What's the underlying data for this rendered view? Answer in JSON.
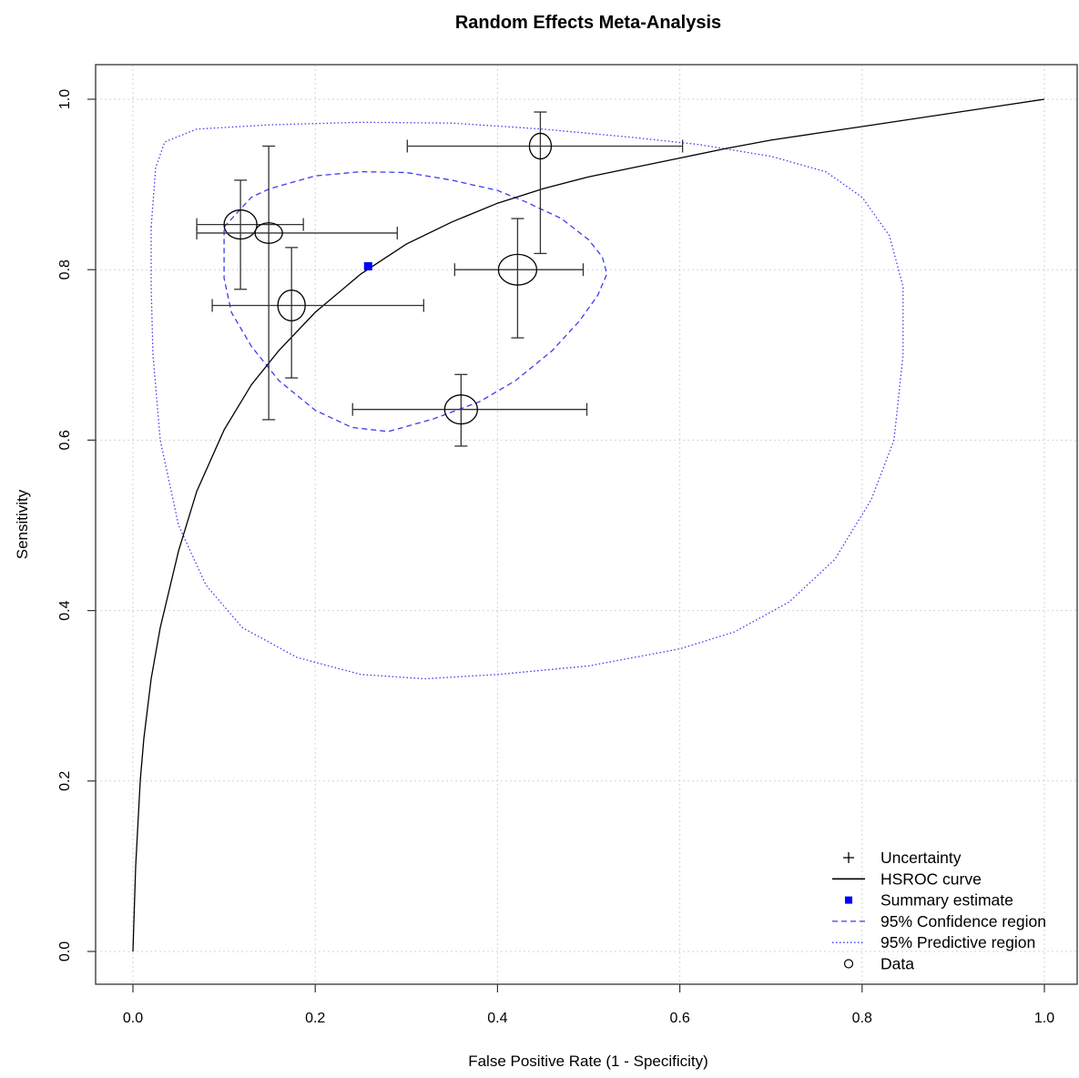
{
  "chart_data": {
    "type": "scatter",
    "title": "Random Effects Meta-Analysis",
    "xlabel": "False Positive Rate (1 - Specificity)",
    "ylabel": "Sensitivity",
    "xlim": [
      0,
      1
    ],
    "ylim": [
      0,
      1
    ],
    "xticks": [
      "0.0",
      "0.2",
      "0.4",
      "0.6",
      "0.8",
      "1.0"
    ],
    "yticks": [
      "0.0",
      "0.2",
      "0.4",
      "0.6",
      "0.8",
      "1.0"
    ],
    "grid": true,
    "legend_position": "bottom-right",
    "legend": [
      {
        "label": "Uncertainty",
        "symbol": "plus"
      },
      {
        "label": "HSROC curve",
        "symbol": "solid-line"
      },
      {
        "label": "Summary estimate",
        "symbol": "blue-square"
      },
      {
        "label": "95% Confidence region",
        "symbol": "dashed-line"
      },
      {
        "label": "95% Predictive region",
        "symbol": "dotted-line"
      },
      {
        "label": "Data",
        "symbol": "circle"
      }
    ],
    "colors": {
      "region": "#3c3cf0",
      "summary": "#0000ff",
      "data": "#000000",
      "curve": "#000000",
      "grid": "#d3d3d3"
    },
    "studies": [
      {
        "fpr": 0.118,
        "sens": 0.853,
        "fpr_ci": [
          0.07,
          0.187
        ],
        "sens_ci": [
          0.777,
          0.905
        ],
        "rx": 0.018,
        "ry": 0.017
      },
      {
        "fpr": 0.149,
        "sens": 0.843,
        "fpr_ci": [
          0.07,
          0.29
        ],
        "sens_ci": [
          0.624,
          0.945
        ],
        "rx": 0.015,
        "ry": 0.012
      },
      {
        "fpr": 0.174,
        "sens": 0.758,
        "fpr_ci": [
          0.087,
          0.319
        ],
        "sens_ci": [
          0.673,
          0.826
        ],
        "rx": 0.015,
        "ry": 0.018
      },
      {
        "fpr": 0.36,
        "sens": 0.636,
        "fpr_ci": [
          0.241,
          0.498
        ],
        "sens_ci": [
          0.593,
          0.677
        ],
        "rx": 0.018,
        "ry": 0.017
      },
      {
        "fpr": 0.422,
        "sens": 0.8,
        "fpr_ci": [
          0.353,
          0.494
        ],
        "sens_ci": [
          0.72,
          0.86
        ],
        "rx": 0.021,
        "ry": 0.018
      },
      {
        "fpr": 0.447,
        "sens": 0.945,
        "fpr_ci": [
          0.301,
          0.603
        ],
        "sens_ci": [
          0.819,
          0.985
        ],
        "rx": 0.012,
        "ry": 0.015
      }
    ],
    "summary_estimate": {
      "fpr": 0.258,
      "sens": 0.804
    },
    "hsroc_curve": [
      [
        0.0,
        0.0
      ],
      [
        0.003,
        0.1
      ],
      [
        0.008,
        0.2
      ],
      [
        0.012,
        0.25
      ],
      [
        0.02,
        0.32
      ],
      [
        0.03,
        0.38
      ],
      [
        0.05,
        0.47
      ],
      [
        0.07,
        0.54
      ],
      [
        0.1,
        0.612
      ],
      [
        0.13,
        0.665
      ],
      [
        0.16,
        0.705
      ],
      [
        0.2,
        0.75
      ],
      [
        0.25,
        0.795
      ],
      [
        0.3,
        0.83
      ],
      [
        0.35,
        0.856
      ],
      [
        0.4,
        0.878
      ],
      [
        0.45,
        0.895
      ],
      [
        0.5,
        0.909
      ],
      [
        0.55,
        0.92
      ],
      [
        0.6,
        0.931
      ],
      [
        0.65,
        0.942
      ],
      [
        0.7,
        0.952
      ],
      [
        0.75,
        0.96
      ],
      [
        0.8,
        0.968
      ],
      [
        0.85,
        0.976
      ],
      [
        0.9,
        0.984
      ],
      [
        0.95,
        0.992
      ],
      [
        1.0,
        1.0
      ]
    ],
    "confidence_region": [
      [
        0.1,
        0.85
      ],
      [
        0.13,
        0.885
      ],
      [
        0.15,
        0.895
      ],
      [
        0.2,
        0.91
      ],
      [
        0.25,
        0.915
      ],
      [
        0.3,
        0.914
      ],
      [
        0.35,
        0.905
      ],
      [
        0.4,
        0.893
      ],
      [
        0.43,
        0.88
      ],
      [
        0.47,
        0.86
      ],
      [
        0.5,
        0.835
      ],
      [
        0.515,
        0.815
      ],
      [
        0.52,
        0.795
      ],
      [
        0.51,
        0.77
      ],
      [
        0.49,
        0.74
      ],
      [
        0.46,
        0.705
      ],
      [
        0.42,
        0.67
      ],
      [
        0.38,
        0.645
      ],
      [
        0.33,
        0.625
      ],
      [
        0.28,
        0.61
      ],
      [
        0.24,
        0.615
      ],
      [
        0.2,
        0.635
      ],
      [
        0.16,
        0.67
      ],
      [
        0.13,
        0.71
      ],
      [
        0.108,
        0.75
      ],
      [
        0.1,
        0.79
      ],
      [
        0.1,
        0.82
      ],
      [
        0.1,
        0.85
      ]
    ],
    "predictive_region": [
      [
        0.02,
        0.85
      ],
      [
        0.025,
        0.92
      ],
      [
        0.035,
        0.95
      ],
      [
        0.07,
        0.965
      ],
      [
        0.15,
        0.97
      ],
      [
        0.25,
        0.973
      ],
      [
        0.35,
        0.972
      ],
      [
        0.45,
        0.965
      ],
      [
        0.55,
        0.955
      ],
      [
        0.62,
        0.947
      ],
      [
        0.7,
        0.933
      ],
      [
        0.76,
        0.915
      ],
      [
        0.8,
        0.885
      ],
      [
        0.83,
        0.84
      ],
      [
        0.845,
        0.78
      ],
      [
        0.845,
        0.7
      ],
      [
        0.835,
        0.6
      ],
      [
        0.81,
        0.53
      ],
      [
        0.77,
        0.46
      ],
      [
        0.72,
        0.41
      ],
      [
        0.66,
        0.375
      ],
      [
        0.6,
        0.355
      ],
      [
        0.5,
        0.335
      ],
      [
        0.4,
        0.325
      ],
      [
        0.32,
        0.32
      ],
      [
        0.25,
        0.325
      ],
      [
        0.18,
        0.345
      ],
      [
        0.12,
        0.38
      ],
      [
        0.08,
        0.43
      ],
      [
        0.05,
        0.5
      ],
      [
        0.03,
        0.6
      ],
      [
        0.022,
        0.7
      ],
      [
        0.02,
        0.78
      ],
      [
        0.02,
        0.85
      ]
    ]
  }
}
